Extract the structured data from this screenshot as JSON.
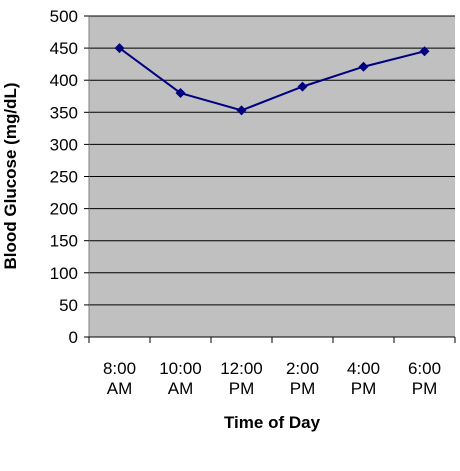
{
  "chart_data": {
    "type": "line",
    "title": "",
    "xlabel": "Time of Day",
    "ylabel": "Blood Glucose (mg/dL)",
    "categories": [
      [
        "8:00",
        "AM"
      ],
      [
        "10:00",
        "AM"
      ],
      [
        "12:00",
        "PM"
      ],
      [
        "2:00",
        "PM"
      ],
      [
        "4:00",
        "PM"
      ],
      [
        "6:00",
        "PM"
      ]
    ],
    "series": [
      {
        "values": [
          450,
          380,
          353,
          390,
          421,
          445
        ],
        "color": "#000080"
      }
    ],
    "ylim": [
      0,
      500
    ],
    "yticks": [
      0,
      50,
      100,
      150,
      200,
      250,
      300,
      350,
      400,
      450,
      500
    ],
    "grid": true,
    "legend": "none",
    "plot_background": "#c0c0c0",
    "marker": "diamond"
  }
}
